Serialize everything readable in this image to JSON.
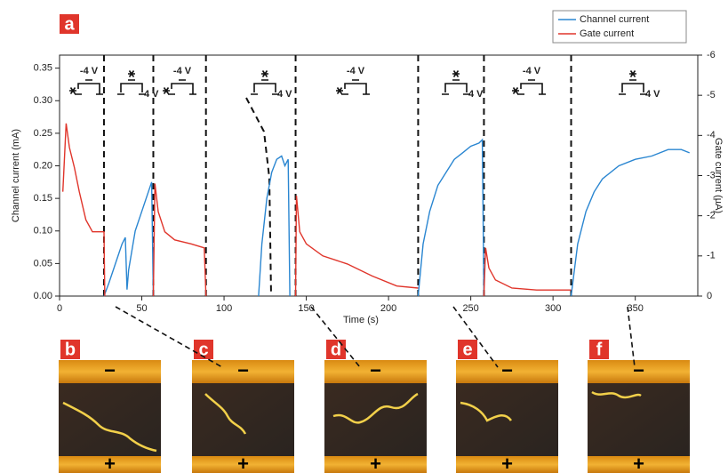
{
  "chart_data": {
    "type": "line",
    "panel_label": "a",
    "xlabel": "Time (s)",
    "ylabel": "Channel current (mA)",
    "y2label": "Gate current (µA)",
    "xlim": [
      0,
      388
    ],
    "xticks": [
      0,
      50,
      100,
      150,
      200,
      250,
      300,
      350
    ],
    "ylim": [
      0,
      0.37
    ],
    "yticks": [
      {
        "value": 0,
        "label": "0.00"
      },
      {
        "value": 0.05,
        "label": "0.05"
      },
      {
        "value": 0.1,
        "label": "0.10"
      },
      {
        "value": 0.15,
        "label": "0.15"
      },
      {
        "value": 0.2,
        "label": "0.20"
      },
      {
        "value": 0.25,
        "label": "0.25"
      },
      {
        "value": 0.3,
        "label": "0.30"
      },
      {
        "value": 0.35,
        "label": "0.35"
      }
    ],
    "y2lim": [
      0,
      -6
    ],
    "y2ticks": [
      0,
      -1,
      -2,
      -3,
      -4,
      -5,
      -6
    ],
    "switch_times": [
      27,
      57,
      89,
      143.5,
      218,
      258,
      311
    ],
    "annotations": [
      "-4 V",
      "4 V",
      "-4 V",
      "4 V",
      "-4 V",
      "4 V",
      "-4 V",
      "4 V"
    ],
    "legend": "top-right",
    "series": [
      {
        "name": "Channel current",
        "color": "#2a86d1",
        "x": [
          27,
          30,
          34,
          38,
          40,
          41,
          42,
          46,
          50,
          54,
          56,
          57,
          null,
          121,
          123,
          126,
          129,
          132,
          135,
          137,
          139,
          140,
          null,
          218,
          221,
          225,
          230,
          235,
          240,
          245,
          250,
          255,
          257,
          258,
          null,
          311,
          315,
          320,
          325,
          330,
          340,
          350,
          360,
          370,
          378,
          383
        ],
        "values": [
          0,
          0.02,
          0.05,
          0.08,
          0.09,
          0.01,
          0.04,
          0.1,
          0.13,
          0.16,
          0.175,
          0,
          null,
          0,
          0.08,
          0.15,
          0.19,
          0.21,
          0.215,
          0.2,
          0.21,
          0,
          null,
          0,
          0.08,
          0.13,
          0.17,
          0.19,
          0.21,
          0.22,
          0.23,
          0.235,
          0.24,
          0,
          null,
          0,
          0.08,
          0.13,
          0.16,
          0.18,
          0.2,
          0.21,
          0.215,
          0.225,
          0.225,
          0.22
        ]
      },
      {
        "name": "Gate current",
        "color": "#e0352b",
        "axis": "y2",
        "x": [
          2,
          4,
          6,
          9,
          12,
          16,
          20,
          25,
          27,
          27.5,
          null,
          57,
          58,
          60,
          64,
          70,
          80,
          88,
          89,
          null,
          143.5,
          144,
          146,
          150,
          160,
          175,
          190,
          205,
          218,
          null,
          258,
          259,
          261,
          265,
          275,
          290,
          311
        ],
        "values": [
          -2.6,
          -4.3,
          -3.7,
          -3.2,
          -2.6,
          -1.9,
          -1.6,
          -1.6,
          -1.6,
          0,
          null,
          0,
          -2.8,
          -2.1,
          -1.6,
          -1.4,
          -1.3,
          -1.2,
          0,
          null,
          0,
          -2.5,
          -1.6,
          -1.3,
          -1.0,
          -0.8,
          -0.5,
          -0.25,
          -0.2,
          null,
          0,
          -1.2,
          -0.7,
          -0.4,
          -0.2,
          -0.15,
          -0.15
        ]
      }
    ]
  },
  "panels": {
    "labels": [
      "b",
      "c",
      "d",
      "e",
      "f"
    ],
    "top_sign": "−",
    "bottom_sign": "+"
  }
}
